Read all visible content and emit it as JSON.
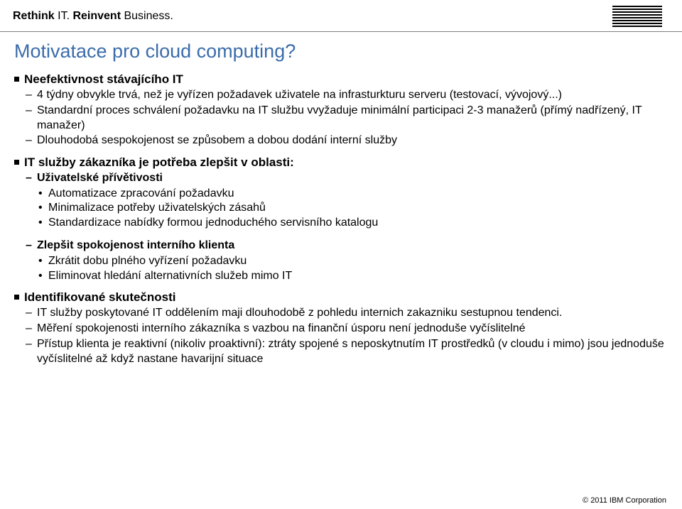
{
  "header": {
    "tagline_bold1": "Rethink",
    "tagline_plain1": " IT. ",
    "tagline_bold2": "Reinvent",
    "tagline_plain2": " Business."
  },
  "title": "Motivatace pro cloud computing?",
  "sections": {
    "s1": {
      "heading": "Neefektivnost stávajícího IT",
      "items": [
        "4 týdny obvykle trvá, než je vyřízen požadavek uživatele na infrasturkturu serveru (testovací, vývojový...)",
        "Standardní proces schválení požadavku na IT službu vvyžaduje minimální participaci 2-3 manažerů (přímý nadřízený, IT manažer)",
        "Dlouhodobá sespokojenost se způsobem a dobou dodání interní služby"
      ]
    },
    "s2": {
      "heading": "IT služby zákazníka je potřeba zlepšit v oblasti:",
      "sub1": {
        "label": "Uživatelské přívětivosti",
        "bullets": [
          "Automatizace zpracování požadavku",
          "Minimalizace potřeby uživatelských zásahů",
          "Standardizace nabídky formou jednoduchého servisního katalogu"
        ]
      },
      "sub2": {
        "label": "Zlepšit spokojenost interního klienta",
        "bullets": [
          "Zkrátit dobu plného vyřízení požadavku",
          "Eliminovat hledání alternativních služeb mimo IT"
        ]
      }
    },
    "s3": {
      "heading": "Identifikované skutečnosti",
      "items": [
        "IT služby poskytované IT oddělením maji dlouhodobě z pohledu internich zakazniku sestupnou tendenci.",
        "Měření spokojenosti interního zákazníka s vazbou na finanční úsporu není jednoduše vyčíslitelné",
        "Přístup klienta je reaktivní (nikoliv proaktivní): ztráty spojené s neposkytnutím IT prostředků (v cloudu i mimo) jsou jednoduše vyčíslitelné až když nastane havarijní situace"
      ]
    }
  },
  "footer": "© 2011 IBM Corporation",
  "colors": {
    "title": "#3b6caa",
    "text": "#000000",
    "rule": "#808080",
    "bg": "#ffffff"
  }
}
